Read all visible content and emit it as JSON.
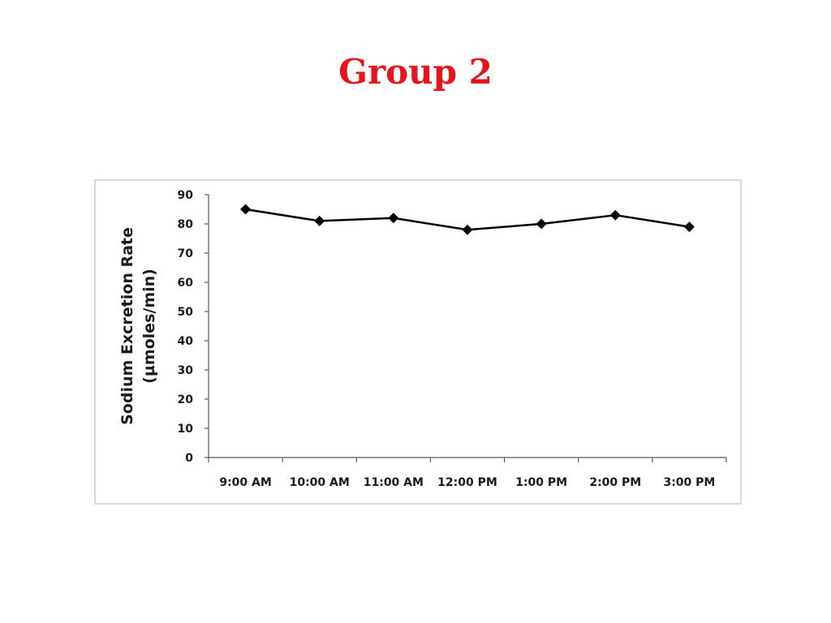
{
  "title": "Group 2",
  "colors": {
    "title": "#e8141c",
    "line": "#000000",
    "axis": "#595959",
    "frame": "#d9d9d9"
  },
  "chart_data": {
    "type": "line",
    "categories": [
      "9:00 AM",
      "10:00 AM",
      "11:00 AM",
      "12:00 PM",
      "1:00 PM",
      "2:00 PM",
      "3:00 PM"
    ],
    "series": [
      {
        "values": [
          85,
          81,
          82,
          78,
          80,
          83,
          79
        ],
        "marker": "diamond"
      }
    ],
    "ylabel_line1": "Sodium Excretion Rate",
    "ylabel_line2": "(µmoles/min)",
    "xlabel": "",
    "ylim": [
      0,
      90
    ],
    "ytick_step": 10,
    "yticks": [
      "0",
      "10",
      "20",
      "30",
      "40",
      "50",
      "60",
      "70",
      "80",
      "90"
    ],
    "grid": false,
    "legend": "none"
  }
}
